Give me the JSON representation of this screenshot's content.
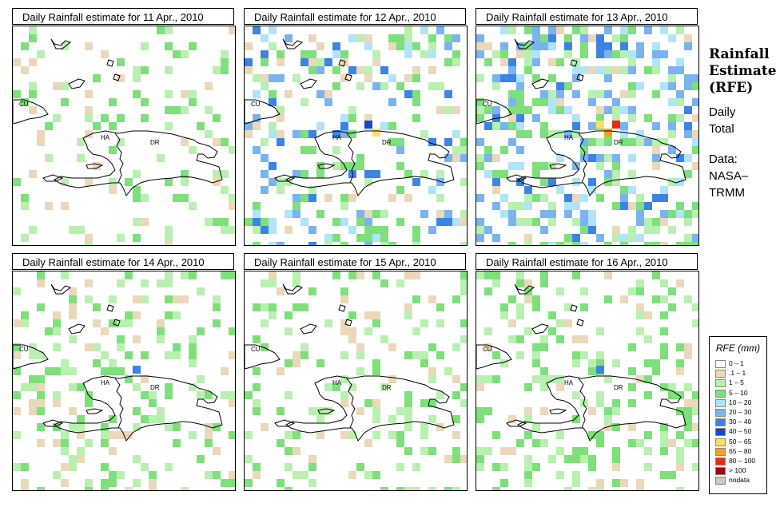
{
  "panels": [
    {
      "title": "Daily Rainfall estimate for  11 Apr., 2010",
      "seed": 11,
      "intensity": 0.35,
      "hot": []
    },
    {
      "title": "Daily Rainfall estimate for  12 Apr., 2010",
      "seed": 12,
      "intensity": 0.65,
      "hot": [
        "40-50",
        "50-65"
      ]
    },
    {
      "title": "Daily Rainfall estimate for  13 Apr., 2010",
      "seed": 13,
      "intensity": 0.9,
      "hot": [
        "50-65",
        "65-80",
        "80-100"
      ]
    },
    {
      "title": "Daily Rainfall estimate for  14 Apr., 2010",
      "seed": 14,
      "intensity": 0.45,
      "hot": [
        "30-40"
      ]
    },
    {
      "title": "Daily Rainfall estimate for  15 Apr., 2010",
      "seed": 15,
      "intensity": 0.4,
      "hot": []
    },
    {
      "title": "Daily Rainfall estimate for  16 Apr., 2010",
      "seed": 16,
      "intensity": 0.5,
      "hot": [
        "30-40"
      ]
    }
  ],
  "map_labels": {
    "cuba": "CU",
    "haiti": "HA",
    "dominican_republic": "DR"
  },
  "side": {
    "title_lines": [
      "Rainfall",
      "Estimate",
      "(RFE)"
    ],
    "subtitle_lines": [
      "Daily",
      "Total"
    ],
    "source_lines": [
      "Data:",
      "NASA–",
      "TRMM"
    ]
  },
  "legend": {
    "title": "RFE (mm)",
    "items": [
      {
        "label": "0 – 1",
        "color": "#ffffff"
      },
      {
        "label": ".1 – 1",
        "color": "#ead8b8"
      },
      {
        "label": "1 – 5",
        "color": "#b8f0b0"
      },
      {
        "label": "5 – 10",
        "color": "#7ee07a"
      },
      {
        "label": "10 – 20",
        "color": "#b0e4f8"
      },
      {
        "label": "20 – 30",
        "color": "#7ab4f0"
      },
      {
        "label": "30 – 40",
        "color": "#3c84e4"
      },
      {
        "label": "40 – 50",
        "color": "#1848c8"
      },
      {
        "label": "50 – 65",
        "color": "#f8e060"
      },
      {
        "label": "65 – 80",
        "color": "#f8a020"
      },
      {
        "label": "80 – 100",
        "color": "#e82c10"
      },
      {
        "label": "> 100",
        "color": "#a00000"
      },
      {
        "label": "nodata",
        "color": "#c8c8c8"
      }
    ]
  }
}
